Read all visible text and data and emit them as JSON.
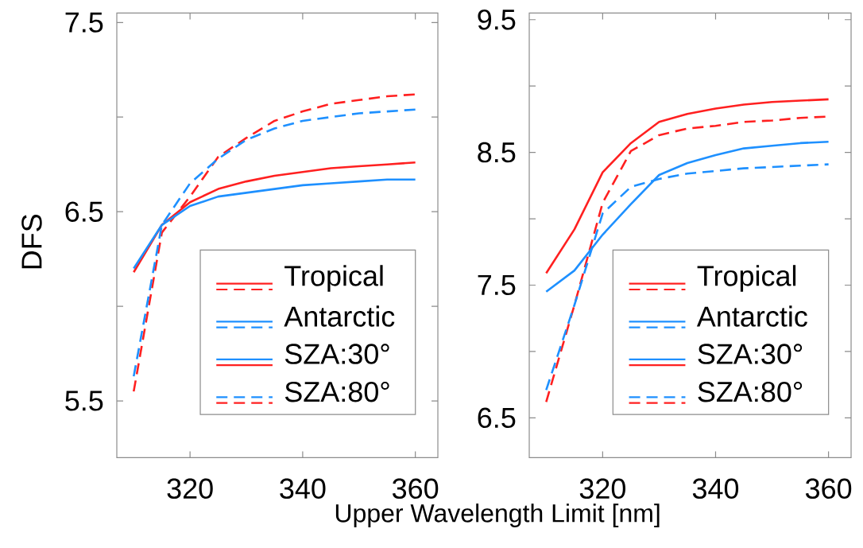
{
  "chart_data": [
    {
      "type": "line",
      "ylabel": "DFS",
      "xlabel": "Upper Wavelength Limit [nm]",
      "xlim": [
        307,
        364
      ],
      "ylim": [
        5.2,
        7.55
      ],
      "xticks": [
        320,
        340,
        360
      ],
      "yticks": [
        5.5,
        {
          "value": 6.0,
          "label": null
        },
        6.5,
        {
          "value": 7.0,
          "label": null
        },
        7.5
      ],
      "grid": false,
      "annotations": [
        "Tropical",
        "Antarctic",
        "SZA:30°",
        "SZA:80°"
      ],
      "x": [
        310,
        315,
        320,
        325,
        330,
        335,
        340,
        345,
        350,
        355,
        360
      ],
      "series": [
        {
          "color": "#ff2020",
          "line_style": "solid",
          "values": [
            6.18,
            6.43,
            6.55,
            6.62,
            6.66,
            6.69,
            6.71,
            6.73,
            6.74,
            6.75,
            6.76
          ]
        },
        {
          "color": "#ff2020",
          "line_style": "dashed",
          "values": [
            5.55,
            6.39,
            6.58,
            6.79,
            6.89,
            6.98,
            7.03,
            7.07,
            7.09,
            7.11,
            7.12
          ]
        },
        {
          "color": "#1e90ff",
          "line_style": "solid",
          "values": [
            6.2,
            6.43,
            6.53,
            6.58,
            6.6,
            6.62,
            6.64,
            6.65,
            6.66,
            6.67,
            6.67
          ]
        },
        {
          "color": "#1e90ff",
          "line_style": "dashed",
          "values": [
            5.63,
            6.43,
            6.65,
            6.78,
            6.88,
            6.94,
            6.98,
            7.0,
            7.02,
            7.03,
            7.04
          ]
        }
      ]
    },
    {
      "type": "line",
      "xlim": [
        307,
        364
      ],
      "ylim": [
        6.2,
        9.55
      ],
      "xticks": [
        320,
        340,
        360
      ],
      "yticks": [
        6.5,
        {
          "value": 7.0,
          "label": null
        },
        7.5,
        {
          "value": 8.0,
          "label": null
        },
        8.5,
        {
          "value": 9.0,
          "label": null
        },
        9.5
      ],
      "grid": false,
      "annotations": [
        "Tropical",
        "Antarctic",
        "SZA:30°",
        "SZA:80°"
      ],
      "x": [
        310,
        315,
        320,
        325,
        330,
        335,
        340,
        345,
        350,
        355,
        360
      ],
      "series": [
        {
          "color": "#ff2020",
          "line_style": "solid",
          "values": [
            7.59,
            7.92,
            8.35,
            8.57,
            8.73,
            8.79,
            8.83,
            8.86,
            8.88,
            8.89,
            8.9
          ]
        },
        {
          "color": "#ff2020",
          "line_style": "dashed",
          "values": [
            6.62,
            7.35,
            8.12,
            8.51,
            8.63,
            8.68,
            8.7,
            8.73,
            8.74,
            8.76,
            8.77
          ]
        },
        {
          "color": "#1e90ff",
          "line_style": "solid",
          "values": [
            7.45,
            7.61,
            7.88,
            8.11,
            8.33,
            8.42,
            8.48,
            8.53,
            8.55,
            8.57,
            8.58
          ]
        },
        {
          "color": "#1e90ff",
          "line_style": "dashed",
          "values": [
            6.71,
            7.35,
            8.04,
            8.24,
            8.3,
            8.34,
            8.36,
            8.38,
            8.39,
            8.4,
            8.41
          ]
        }
      ]
    }
  ]
}
